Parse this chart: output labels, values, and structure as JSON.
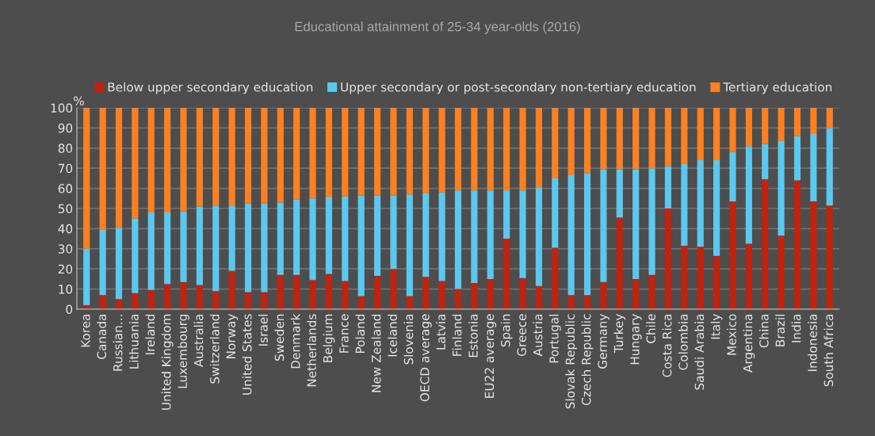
{
  "chart_data": {
    "type": "bar",
    "stacked": true,
    "title": "Educational attainment of 25-34 year-olds (2016)",
    "ylabel": "%",
    "categories": [
      "Korea",
      "Canada",
      "Russian...",
      "Lithuania",
      "Ireland",
      "United Kingdom",
      "Luxembourg",
      "Australia",
      "Switzerland",
      "Norway",
      "United States",
      "Israel",
      "Sweden",
      "Denmark",
      "Netherlands",
      "Belgium",
      "France",
      "Poland",
      "New Zealand",
      "Iceland",
      "Slovenia",
      "OECD average",
      "Latvia",
      "Finland",
      "Estonia",
      "EU22 average",
      "Spain",
      "Greece",
      "Austria",
      "Portugal",
      "Slovak Republic",
      "Czech Republic",
      "Germany",
      "Turkey",
      "Hungary",
      "Chile",
      "Costa Rica",
      "Colombia",
      "Saudi Arabia",
      "Italy",
      "Mexico",
      "Argentina",
      "China",
      "Brazil",
      "India",
      "Indonesia",
      "South Africa"
    ],
    "series": [
      {
        "name": "Below upper secondary education",
        "color": "#c0230f",
        "values": [
          2,
          7,
          5,
          8,
          9.5,
          12.5,
          13.5,
          12,
          9,
          19,
          8.5,
          8.5,
          17,
          17,
          14.5,
          17.5,
          14,
          6.5,
          16.5,
          20,
          6.5,
          16,
          14,
          10,
          13,
          15,
          35,
          15.5,
          11.5,
          30.5,
          7,
          7,
          13.5,
          45.5,
          15,
          17,
          50,
          31.5,
          31,
          26.5,
          53.5,
          32.5,
          64.5,
          36.5,
          64,
          53.5,
          51.5
        ]
      },
      {
        "name": "Upper secondary or post-secondary non-tertiary education",
        "color": "#5bc8f0",
        "values": [
          28,
          32.5,
          35.5,
          37,
          38.5,
          35.5,
          35,
          39,
          42.5,
          32.5,
          44,
          44,
          36,
          37.5,
          40.5,
          38,
          42,
          50,
          40,
          36.5,
          50.5,
          41.5,
          44,
          49,
          46,
          44,
          24,
          43.5,
          49,
          34.5,
          59.5,
          60.5,
          56,
          24,
          54.5,
          53,
          21,
          40.5,
          43,
          47.5,
          24.5,
          48.5,
          17.5,
          47,
          22,
          33.5,
          38.5
        ]
      },
      {
        "name": "Tertiary education",
        "color": "#ff8020",
        "values": [
          70,
          60.5,
          59.5,
          55,
          52,
          52,
          51.5,
          49,
          48.5,
          48.5,
          47.5,
          47.5,
          47,
          45.5,
          45,
          44.5,
          44,
          43.5,
          43.5,
          43.5,
          43,
          42.5,
          42,
          41,
          41,
          41,
          41,
          41,
          39.5,
          35,
          33.5,
          32.5,
          30.5,
          30.5,
          30.5,
          30,
          29,
          28,
          26,
          26,
          22,
          19,
          18,
          16.5,
          14,
          13,
          10
        ]
      }
    ],
    "ylim": [
      0,
      100
    ],
    "yticks": [
      0,
      10,
      20,
      30,
      40,
      50,
      60,
      70,
      80,
      90,
      100
    ],
    "grid": "y",
    "legend": "top"
  }
}
